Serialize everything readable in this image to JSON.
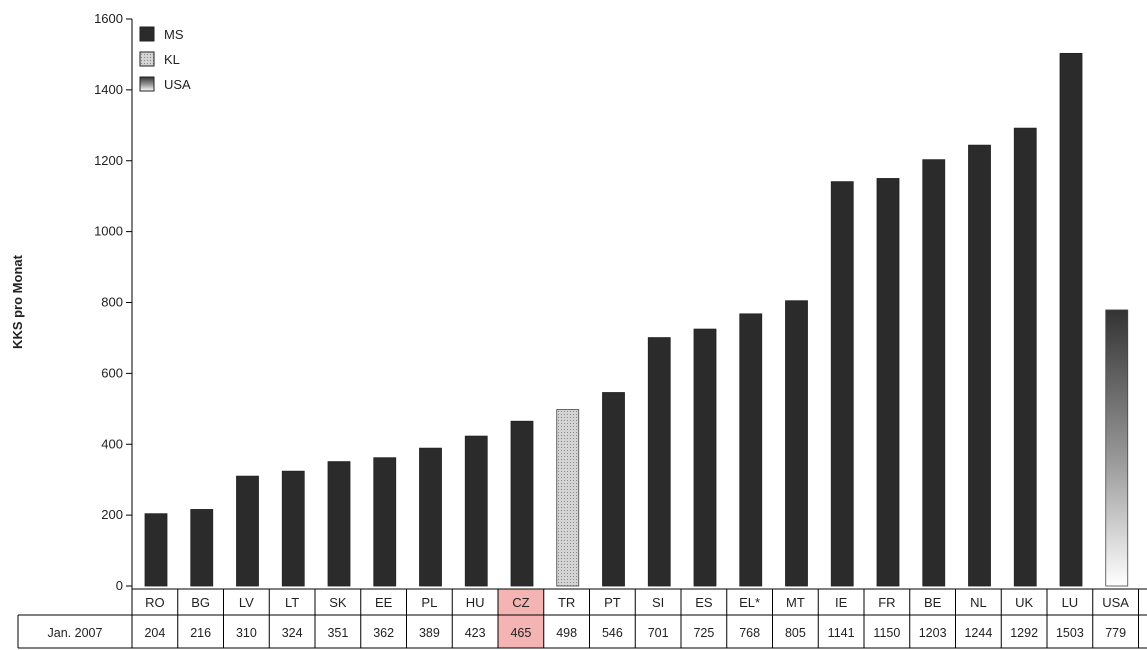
{
  "chart_data": {
    "type": "bar",
    "ylabel": "KKS pro Monat",
    "ylim": [
      0,
      1600
    ],
    "yticks": [
      0,
      200,
      400,
      600,
      800,
      1000,
      1200,
      1400,
      1600
    ],
    "legend": [
      {
        "label": "MS",
        "color": "#2b2b2b",
        "pattern": "solid"
      },
      {
        "label": "KL",
        "color": "#c8c8c8",
        "pattern": "dotted"
      },
      {
        "label": "USA",
        "color": "#7a7a7a",
        "pattern": "gradient"
      }
    ],
    "legend_position": "top-left",
    "table_row_label": "Jan. 2007",
    "highlight": {
      "category": "CZ",
      "color": "#f4b4b4"
    },
    "categories": [
      "RO",
      "BG",
      "LV",
      "LT",
      "SK",
      "EE",
      "PL",
      "HU",
      "CZ",
      "TR",
      "PT",
      "SI",
      "ES",
      "EL*",
      "MT",
      "IE",
      "FR",
      "BE",
      "NL",
      "UK",
      "LU",
      "USA"
    ],
    "group": [
      "MS",
      "MS",
      "MS",
      "MS",
      "MS",
      "MS",
      "MS",
      "MS",
      "MS",
      "KL",
      "MS",
      "MS",
      "MS",
      "MS",
      "MS",
      "MS",
      "MS",
      "MS",
      "MS",
      "MS",
      "MS",
      "USA"
    ],
    "values": [
      204,
      216,
      310,
      324,
      351,
      362,
      389,
      423,
      465,
      498,
      546,
      701,
      725,
      768,
      805,
      1141,
      1150,
      1203,
      1244,
      1292,
      1503,
      779
    ]
  }
}
